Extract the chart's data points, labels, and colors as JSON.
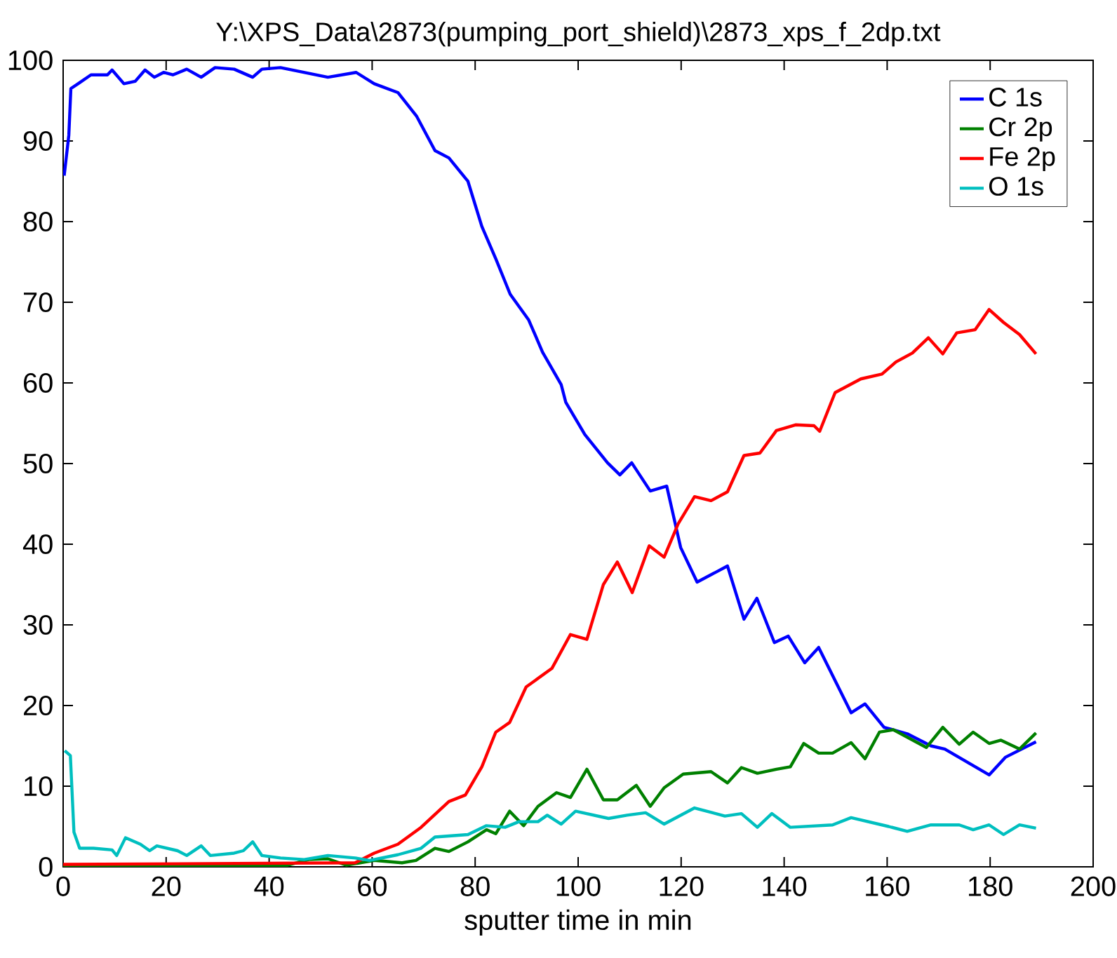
{
  "chart_data": {
    "type": "line",
    "title": "Y:\\XPS_Data\\2873(pumping_port_shield)\\2873_xps_f_2dp.txt",
    "xlabel": "sputter time in min",
    "xlim": [
      0,
      200
    ],
    "ylim": [
      0,
      100
    ],
    "xticks": [
      0,
      20,
      40,
      60,
      80,
      100,
      120,
      140,
      160,
      180,
      200
    ],
    "yticks": [
      0,
      10,
      20,
      30,
      40,
      50,
      60,
      70,
      80,
      90,
      100
    ],
    "grid": false,
    "legend": "top right",
    "series": [
      {
        "name": "C 1s",
        "color": "#0000ff",
        "x": [
          0.2,
          1.1,
          1.5,
          2.9,
          5.4,
          8.6,
          9.5,
          11.8,
          14,
          15.9,
          17.7,
          19.5,
          21.3,
          24,
          26.8,
          29.5,
          33.2,
          36.8,
          38.6,
          42.2,
          46.8,
          51.4,
          56.9,
          60.4,
          65,
          68.6,
          72.2,
          74.9,
          78.6,
          81.3,
          84,
          86.8,
          90.4,
          93.1,
          96.7,
          97.6,
          101.3,
          105.7,
          108.1,
          110.4,
          114,
          117.2,
          119.9,
          123.1,
          129,
          132.2,
          134.7,
          138.1,
          140.8,
          144,
          146.7,
          153,
          155.7,
          159.4,
          163.9,
          168.5,
          171.2,
          179.8,
          183,
          188.9
        ],
        "values": [
          85.7,
          90.7,
          96.5,
          97.1,
          98.2,
          98.2,
          98.8,
          97.1,
          97.4,
          98.8,
          97.9,
          98.5,
          98.2,
          98.9,
          97.9,
          99.1,
          98.9,
          97.9,
          98.9,
          99.1,
          98.5,
          97.9,
          98.5,
          97.1,
          96,
          93.1,
          88.8,
          87.9,
          85,
          79.4,
          75.4,
          71,
          67.8,
          63.8,
          59.8,
          57.6,
          53.6,
          50.1,
          48.6,
          50.1,
          46.6,
          47.2,
          39.6,
          35.3,
          37.3,
          30.7,
          33.3,
          27.8,
          28.6,
          25.3,
          27.2,
          19.1,
          20.2,
          17.3,
          16.5,
          15,
          14.6,
          11.4,
          13.6,
          15.5
        ]
      },
      {
        "name": "Cr 2p",
        "color": "#008000",
        "x": [
          0,
          43.6,
          47.7,
          51.4,
          55,
          60.4,
          65.8,
          68.5,
          72.2,
          74.9,
          78.6,
          82.2,
          84,
          86.7,
          89.4,
          92.2,
          95.8,
          98.5,
          101.7,
          104.9,
          107.6,
          111.3,
          114,
          116.7,
          120.4,
          125.8,
          129,
          131.7,
          134.8,
          138.5,
          141.2,
          143.8,
          146.7,
          149.4,
          153,
          155.7,
          158.5,
          161.2,
          167.6,
          170.8,
          174,
          176.7,
          179.8,
          182.1,
          185.7,
          188.9
        ],
        "values": [
          0,
          0.2,
          0.9,
          1,
          0.2,
          0.8,
          0.5,
          0.8,
          2.3,
          1.9,
          3.1,
          4.6,
          4.1,
          6.9,
          5.1,
          7.5,
          9.2,
          8.6,
          12.1,
          8.3,
          8.3,
          10.1,
          7.5,
          9.8,
          11.5,
          11.8,
          10.4,
          12.3,
          11.6,
          12.1,
          12.4,
          15.3,
          14.1,
          14.1,
          15.4,
          13.4,
          16.7,
          17,
          14.8,
          17.3,
          15.2,
          16.7,
          15.3,
          15.7,
          14.6,
          16.6
        ]
      },
      {
        "name": "Fe 2p",
        "color": "#ff0000",
        "x": [
          0,
          56.7,
          60.4,
          65,
          69.5,
          74.9,
          78.1,
          81.3,
          84,
          86.7,
          89.9,
          94.9,
          98.5,
          101.7,
          104.9,
          107.6,
          110.5,
          113.8,
          116.7,
          119.4,
          122.6,
          125.8,
          129,
          132.2,
          135.3,
          138.5,
          142.2,
          145.8,
          146.9,
          149.9,
          154.9,
          159,
          161.7,
          164.9,
          168,
          170.8,
          173.5,
          177.1,
          179.8,
          182.6,
          185.7,
          188.9
        ],
        "values": [
          0.3,
          0.5,
          1.7,
          2.8,
          4.9,
          8.1,
          8.9,
          12.4,
          16.7,
          17.9,
          22.3,
          24.6,
          28.8,
          28.2,
          35,
          37.8,
          34,
          39.8,
          38.4,
          42.5,
          45.9,
          45.4,
          46.5,
          51,
          51.3,
          54.1,
          54.8,
          54.7,
          54,
          58.8,
          60.5,
          61.1,
          62.6,
          63.7,
          65.6,
          63.6,
          66.2,
          66.6,
          69.1,
          67.5,
          66,
          63.6
        ]
      },
      {
        "name": "O 1s",
        "color": "#00bfbf",
        "x": [
          0.3,
          1.4,
          2.1,
          3.2,
          5.9,
          9.5,
          10.4,
          12.1,
          15,
          16.8,
          18.2,
          22.2,
          24,
          26.8,
          28.6,
          33.2,
          35,
          36.8,
          38.6,
          42.2,
          46.8,
          51.4,
          56.7,
          59.5,
          65,
          69.5,
          72.2,
          78.6,
          82.2,
          85.8,
          88.5,
          92.2,
          94,
          96.7,
          99.5,
          105.9,
          109.5,
          113.1,
          116.7,
          122.6,
          128.5,
          131.7,
          134.8,
          137.6,
          141.2,
          149.4,
          153,
          160.3,
          163.9,
          168.5,
          174,
          176.7,
          179.8,
          182.6,
          185.7,
          188.9
        ],
        "values": [
          14.4,
          13.8,
          4.3,
          2.3,
          2.3,
          2.1,
          1.4,
          3.6,
          2.8,
          2,
          2.6,
          2,
          1.4,
          2.6,
          1.4,
          1.7,
          2,
          3.1,
          1.4,
          1.1,
          0.9,
          1.4,
          1.1,
          0.8,
          1.5,
          2.3,
          3.7,
          4,
          5.1,
          4.9,
          5.6,
          5.6,
          6.4,
          5.3,
          6.9,
          6,
          6.4,
          6.7,
          5.3,
          7.3,
          6.3,
          6.6,
          4.9,
          6.6,
          4.9,
          5.2,
          6.1,
          5,
          4.4,
          5.2,
          5.2,
          4.6,
          5.2,
          4,
          5.2,
          4.8
        ]
      }
    ]
  }
}
